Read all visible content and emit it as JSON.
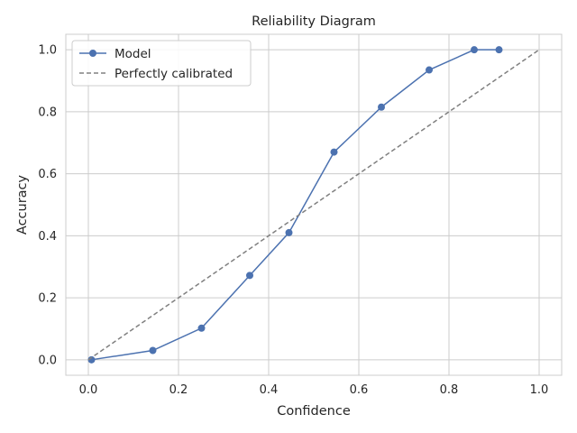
{
  "chart_data": {
    "type": "line",
    "title": "Reliability Diagram",
    "xlabel": "Confidence",
    "ylabel": "Accuracy",
    "xlim": [
      -0.05,
      1.05
    ],
    "ylim": [
      -0.05,
      1.05
    ],
    "xticks": [
      0.0,
      0.2,
      0.4,
      0.6,
      0.8,
      1.0
    ],
    "yticks": [
      0.0,
      0.2,
      0.4,
      0.6,
      0.8,
      1.0
    ],
    "xtick_labels": [
      "0.0",
      "0.2",
      "0.4",
      "0.6",
      "0.8",
      "1.0"
    ],
    "ytick_labels": [
      "0.0",
      "0.2",
      "0.4",
      "0.6",
      "0.8",
      "1.0"
    ],
    "grid": true,
    "legend_position": "top-left",
    "series": [
      {
        "name": "Model",
        "style": "solid-with-markers",
        "color": "#4c72b0",
        "x": [
          0.007,
          0.143,
          0.251,
          0.358,
          0.445,
          0.545,
          0.65,
          0.756,
          0.856,
          0.911
        ],
        "y": [
          0.0,
          0.03,
          0.102,
          0.272,
          0.41,
          0.67,
          0.815,
          0.935,
          1.0,
          1.0
        ]
      },
      {
        "name": "Perfectly calibrated",
        "style": "dashed",
        "color": "#808080",
        "x": [
          0.0,
          1.0
        ],
        "y": [
          0.0,
          1.0
        ]
      }
    ]
  }
}
